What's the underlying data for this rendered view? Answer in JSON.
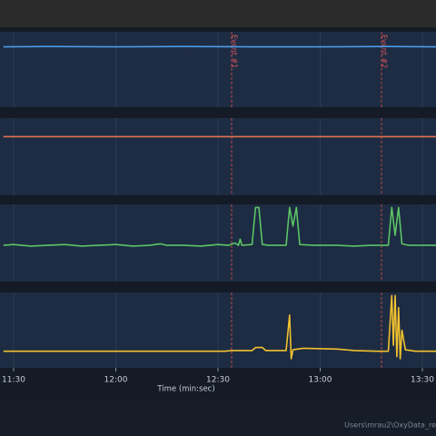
{
  "chart_data": [
    {
      "type": "line",
      "xlim": [
        686,
        814
      ],
      "ylim": [
        0,
        100
      ],
      "color": "#4c9be8",
      "x": [
        687,
        700,
        720,
        740,
        760,
        780,
        800,
        814
      ],
      "values": [
        80,
        80.5,
        80,
        80.5,
        80,
        80,
        80.5,
        80
      ],
      "annotations": [
        {
          "text": "Event #1",
          "x": 754
        },
        {
          "text": "Event #2",
          "x": 798
        }
      ]
    },
    {
      "type": "line",
      "xlim": [
        686,
        814
      ],
      "ylim": [
        0,
        100
      ],
      "color": "#e0734f",
      "x": [
        687,
        700,
        720,
        740,
        760,
        780,
        800,
        814
      ],
      "values": [
        76,
        76,
        76,
        76,
        76,
        76,
        76,
        76
      ]
    },
    {
      "type": "line",
      "xlim": [
        686,
        814
      ],
      "ylim": [
        0,
        100
      ],
      "color": "#5cc466",
      "x": [
        687,
        690,
        695,
        700,
        705,
        710,
        715,
        720,
        725,
        730,
        733,
        735,
        740,
        745,
        750,
        753,
        755,
        756,
        756.5,
        757,
        760,
        761,
        762,
        763,
        765,
        770,
        771,
        772,
        773,
        774,
        778,
        785,
        790,
        795,
        800,
        801,
        802,
        803,
        804,
        806,
        810,
        814
      ],
      "values": [
        47,
        48,
        46,
        47,
        48,
        46,
        47,
        48,
        46,
        47,
        49,
        47,
        47,
        46,
        48,
        47,
        50,
        47,
        55,
        47,
        48,
        96,
        96,
        48,
        47,
        47,
        96,
        72,
        96,
        48,
        47,
        47,
        46,
        47,
        47,
        96,
        60,
        96,
        49,
        47,
        47,
        47
      ]
    },
    {
      "type": "line",
      "xlim": [
        686,
        814
      ],
      "ylim": [
        0,
        100
      ],
      "color": "#f2c12e",
      "x": [
        687,
        700,
        720,
        740,
        752,
        754,
        760,
        761,
        763,
        764,
        770,
        771,
        771.5,
        772,
        775,
        785,
        790,
        797,
        800,
        801,
        801.5,
        802,
        802.5,
        803,
        803.5,
        804,
        805,
        808,
        814
      ],
      "values": [
        22,
        22,
        22,
        22,
        22,
        23,
        23,
        27,
        27,
        23,
        23,
        70,
        12,
        24,
        26,
        25,
        23,
        22,
        22,
        96,
        30,
        96,
        15,
        80,
        12,
        50,
        24,
        22,
        22
      ],
      "xticks": [
        {
          "value": 690,
          "label": "11:30"
        },
        {
          "value": 720,
          "label": "12:00"
        },
        {
          "value": 750,
          "label": "12:30"
        },
        {
          "value": 780,
          "label": "13:00"
        },
        {
          "value": 810,
          "label": "13:30"
        }
      ],
      "xlabel": "Time (min:sec)"
    }
  ],
  "footer": "Users\\mrau2\\OxyData_re"
}
